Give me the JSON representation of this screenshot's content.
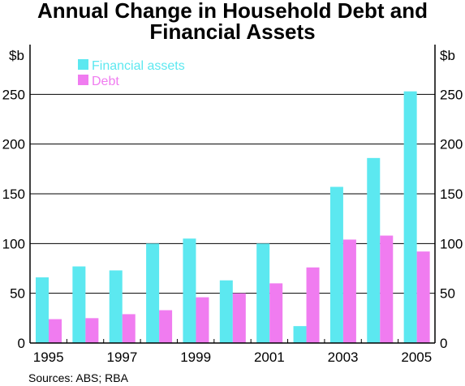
{
  "chart_data": {
    "type": "bar",
    "title_line1": "Annual Change in Household Debt and",
    "title_line2": "Financial Assets",
    "unit_left": "$b",
    "unit_right": "$b",
    "categories": [
      "1995",
      "1996",
      "1997",
      "1998",
      "1999",
      "2000",
      "2001",
      "2002",
      "2003",
      "2004",
      "2005"
    ],
    "x_tick_labels": [
      "1995",
      "",
      "1997",
      "",
      "1999",
      "",
      "2001",
      "",
      "2003",
      "",
      "2005"
    ],
    "series": [
      {
        "name": "Financial assets",
        "color": "#5ce8f0",
        "values": [
          66,
          77,
          73,
          100,
          105,
          63,
          100,
          17,
          157,
          186,
          253
        ]
      },
      {
        "name": "Debt",
        "color": "#f07cf0",
        "values": [
          24,
          25,
          29,
          33,
          46,
          50,
          60,
          76,
          104,
          108,
          92
        ]
      }
    ],
    "ylim": [
      0,
      300
    ],
    "yticks": [
      0,
      50,
      100,
      150,
      200,
      250
    ],
    "grid": true,
    "legend_position": "top-left",
    "source": "Sources: ABS; RBA"
  }
}
